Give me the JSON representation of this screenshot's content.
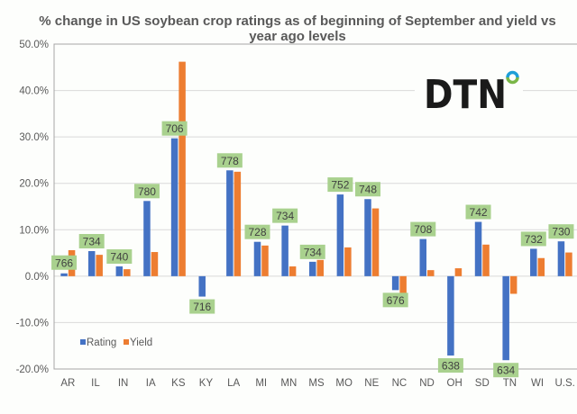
{
  "chart_data": {
    "type": "bar",
    "title_lines": [
      "% change in US soybean crop ratings as of beginning of September and yield vs",
      "year ago levels"
    ],
    "xlabel": "",
    "ylabel": "",
    "ylim": [
      -20,
      50
    ],
    "yticks": [
      50,
      40,
      30,
      20,
      10,
      0,
      -10,
      -20
    ],
    "ytick_labels": [
      "50.0%",
      "40.0%",
      "30.0%",
      "20.0%",
      "10.0%",
      "0.0%",
      "-10.0%",
      "-20.0%"
    ],
    "grid": true,
    "legend_position": "bottom-left",
    "categories": [
      "AR",
      "IL",
      "IN",
      "IA",
      "KS",
      "KY",
      "LA",
      "MI",
      "MN",
      "MS",
      "MO",
      "NE",
      "NC",
      "ND",
      "OH",
      "SD",
      "TN",
      "WI",
      "U.S."
    ],
    "series": [
      {
        "name": "Rating",
        "color": "#4472c4",
        "values": [
          0.6,
          5.4,
          2.1,
          16.2,
          29.7,
          -4.4,
          22.8,
          7.4,
          10.9,
          3.1,
          17.6,
          16.6,
          -3.0,
          8.0,
          -17.1,
          11.7,
          -18.1,
          5.9,
          7.5
        ]
      },
      {
        "name": "Yield",
        "color": "#ed7d31",
        "values": [
          5.6,
          4.6,
          1.5,
          5.2,
          46.2,
          0,
          22.5,
          6.6,
          2.1,
          3.5,
          6.2,
          14.6,
          -3.7,
          1.3,
          1.7,
          6.8,
          -3.8,
          3.9,
          5.1
        ]
      }
    ],
    "data_labels": [
      "766",
      "734",
      "740",
      "780",
      "706",
      "716",
      "778",
      "728",
      "734",
      "734",
      "752",
      "748",
      "676",
      "708",
      "638",
      "742",
      "634",
      "732",
      "730"
    ],
    "data_label_bg": "#a9d18e"
  },
  "logo": {
    "text": "DTN",
    "ring_top": "#1e9fd8",
    "ring_bottom": "#7ab648"
  }
}
